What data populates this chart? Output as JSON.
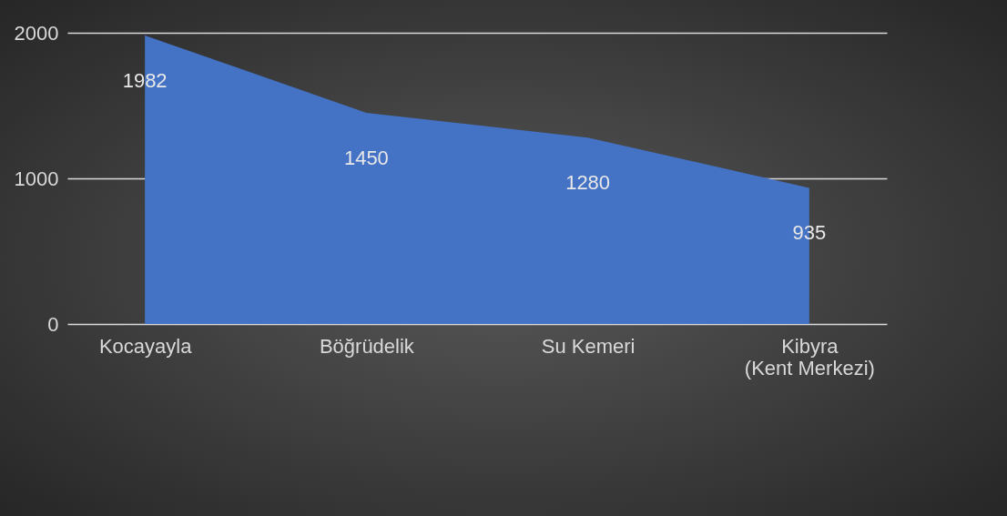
{
  "chart_data": {
    "type": "area",
    "categories": [
      "Kocayayla",
      "Böğrüdelik",
      "Su Kemeri",
      "Kibyra (Kent Merkezi)"
    ],
    "series": [
      {
        "color": "#4472c4",
        "values": [
          1982,
          1450,
          1280,
          935
        ]
      }
    ],
    "ylim": [
      0,
      2000
    ],
    "yticks": [
      0,
      1000,
      2000
    ],
    "grid": "y",
    "data_labels": true,
    "legend": false
  }
}
